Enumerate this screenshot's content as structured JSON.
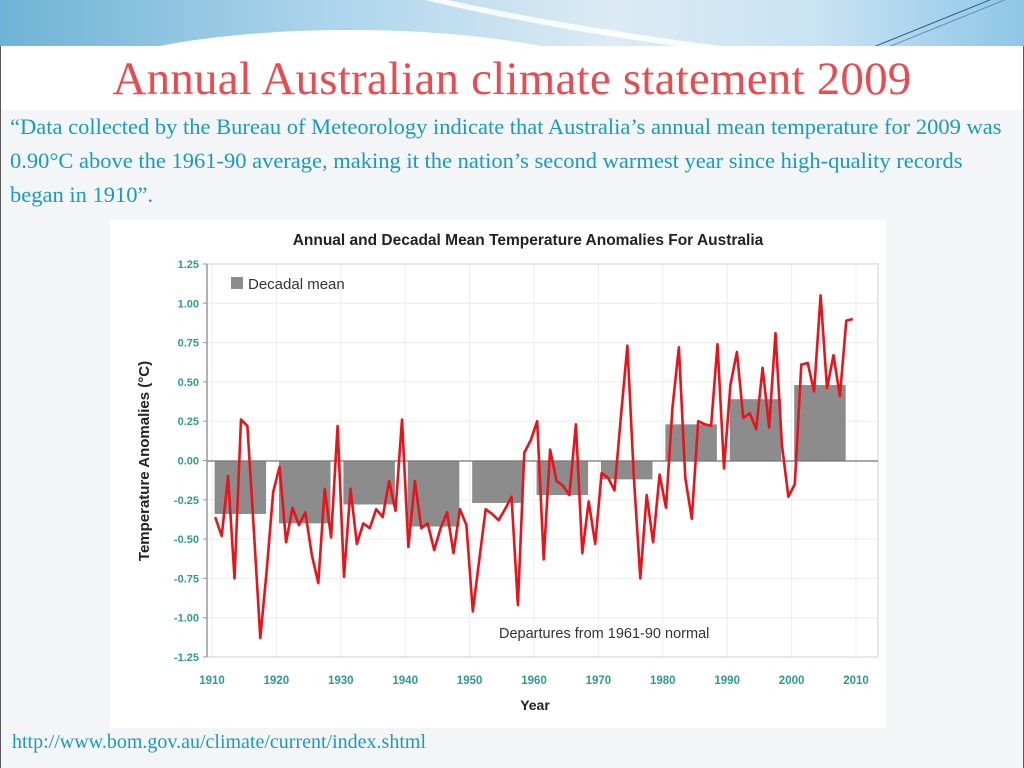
{
  "slide": {
    "title": "Annual Australian climate statement 2009",
    "quote": "“Data collected by the Bureau of Meteorology indicate that Australia’s annual mean temperature for 2009 was 0.90°C above the 1961-90 average, making it the nation’s second warmest year since high-quality records began in 1910”.",
    "source_link": "http://www.bom.gov.au/climate/current/index.shtml"
  },
  "colors": {
    "title": "#e84c51",
    "body_text": "#1a9ac3",
    "annual_line": "#e8141c",
    "decadal_bar": "#8c8c8c",
    "tick_label": "#2f9a8e"
  },
  "chart_data": {
    "type": "bar+line",
    "title": "Annual and Decadal Mean Temperature Anomalies For Australia",
    "xlabel": "Year",
    "ylabel": "Temperature Anomalies (°C)",
    "xlim": [
      1910,
      2010
    ],
    "ylim": [
      -1.25,
      1.25
    ],
    "x_ticks": [
      "1910",
      "1920",
      "1930",
      "1940",
      "1950",
      "1960",
      "1970",
      "1980",
      "1990",
      "2000",
      "2010"
    ],
    "y_ticks": [
      "1.25",
      "1.00",
      "0.75",
      "0.50",
      "0.25",
      "0.00",
      "-0.25",
      "-0.50",
      "-0.75",
      "-1.00",
      "-1.25"
    ],
    "y_tick_values": [
      1.25,
      1.0,
      0.75,
      0.5,
      0.25,
      0.0,
      -0.25,
      -0.5,
      -0.75,
      -1.0,
      -1.25
    ],
    "grid": true,
    "legend": {
      "position": "top-left",
      "entries": [
        "Decadal mean"
      ]
    },
    "annotation": "Departures from 1961-90 normal",
    "series": [
      {
        "name": "Decadal mean",
        "type": "bar",
        "categories": [
          "1910-1919",
          "1920-1929",
          "1930-1939",
          "1940-1949",
          "1950-1959",
          "1960-1969",
          "1970-1979",
          "1980-1989",
          "1990-1999",
          "2000-2009"
        ],
        "starts": [
          1910,
          1920,
          1930,
          1940,
          1950,
          1960,
          1970,
          1980,
          1990,
          2000
        ],
        "values": [
          -0.34,
          -0.4,
          -0.28,
          -0.42,
          -0.27,
          -0.22,
          -0.12,
          0.23,
          0.39,
          0.48
        ]
      },
      {
        "name": "Annual mean",
        "type": "line",
        "x": [
          1910,
          1911,
          1912,
          1913,
          1914,
          1915,
          1916,
          1917,
          1918,
          1919,
          1920,
          1921,
          1922,
          1923,
          1924,
          1925,
          1926,
          1927,
          1928,
          1929,
          1930,
          1931,
          1932,
          1933,
          1934,
          1935,
          1936,
          1937,
          1938,
          1939,
          1940,
          1941,
          1942,
          1943,
          1944,
          1945,
          1946,
          1947,
          1948,
          1949,
          1950,
          1951,
          1952,
          1953,
          1954,
          1955,
          1956,
          1957,
          1958,
          1959,
          1960,
          1961,
          1962,
          1963,
          1964,
          1965,
          1966,
          1967,
          1968,
          1969,
          1970,
          1971,
          1972,
          1973,
          1974,
          1975,
          1976,
          1977,
          1978,
          1979,
          1980,
          1981,
          1982,
          1983,
          1984,
          1985,
          1986,
          1987,
          1988,
          1989,
          1990,
          1991,
          1992,
          1993,
          1994,
          1995,
          1996,
          1997,
          1998,
          1999,
          2000,
          2001,
          2002,
          2003,
          2004,
          2005,
          2006,
          2007,
          2008,
          2009
        ],
        "values": [
          -0.36,
          -0.48,
          -0.1,
          -0.75,
          0.26,
          0.22,
          -0.45,
          -1.13,
          -0.7,
          -0.2,
          -0.04,
          -0.52,
          -0.3,
          -0.41,
          -0.33,
          -0.6,
          -0.78,
          -0.18,
          -0.49,
          0.22,
          -0.74,
          -0.18,
          -0.53,
          -0.4,
          -0.43,
          -0.31,
          -0.36,
          -0.13,
          -0.32,
          0.26,
          -0.55,
          -0.13,
          -0.43,
          -0.4,
          -0.57,
          -0.43,
          -0.33,
          -0.59,
          -0.31,
          -0.41,
          -0.96,
          -0.63,
          -0.31,
          -0.34,
          -0.38,
          -0.31,
          -0.23,
          -0.92,
          0.05,
          0.13,
          0.25,
          -0.63,
          0.07,
          -0.13,
          -0.16,
          -0.22,
          0.23,
          -0.59,
          -0.26,
          -0.53,
          -0.08,
          -0.11,
          -0.19,
          0.28,
          0.73,
          -0.1,
          -0.75,
          -0.22,
          -0.52,
          -0.09,
          -0.3,
          0.34,
          0.72,
          -0.11,
          -0.37,
          0.25,
          0.23,
          0.22,
          0.74,
          -0.05,
          0.48,
          0.69,
          0.27,
          0.3,
          0.2,
          0.59,
          0.21,
          0.81,
          0.1,
          -0.23,
          -0.15,
          0.61,
          0.62,
          0.44,
          1.05,
          0.46,
          0.67,
          0.41,
          0.89,
          0.9
        ]
      }
    ]
  }
}
